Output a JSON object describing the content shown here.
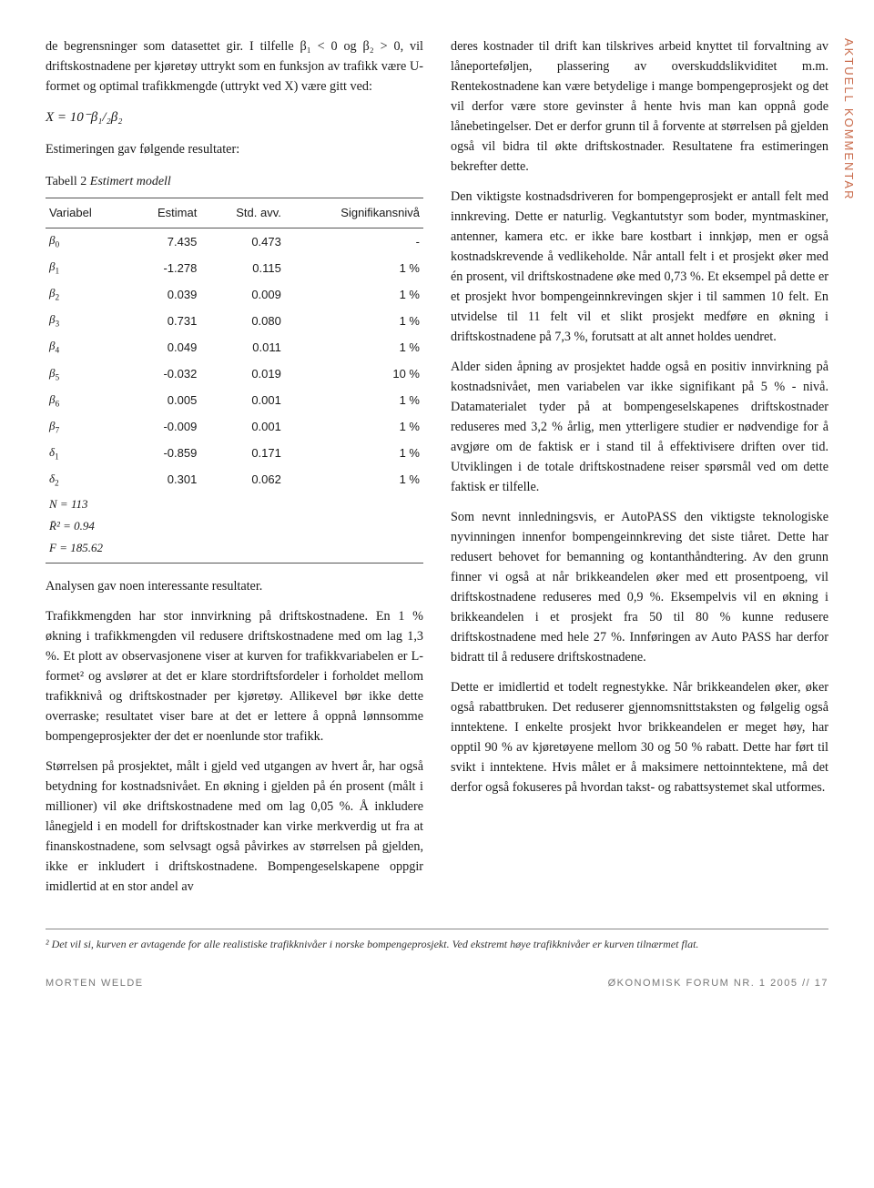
{
  "sideLabel": "AKTUELL KOMMENTAR",
  "left": {
    "p1": "de begrensninger som datasettet gir. I tilfelle β₁ < 0 og β₂ > 0, vil driftskostnadene per kjøretøy uttrykt som en funksjon av trafikk være U-formet og optimal trafikkmengde (uttrykt ved X) være gitt ved:",
    "formula": "X = 10⁻β₁/₂β₂",
    "p2": "Estimeringen gav følgende resultater:",
    "tableTitle": {
      "num": "Tabell 2",
      "name": "Estimert modell"
    },
    "table": {
      "headers": [
        "Variabel",
        "Estimat",
        "Std. avv.",
        "Signifikansnivå"
      ],
      "rows": [
        {
          "v": "β",
          "s": "0",
          "e": "7.435",
          "sd": "0.473",
          "sig": "-"
        },
        {
          "v": "β",
          "s": "1",
          "e": "-1.278",
          "sd": "0.115",
          "sig": "1 %"
        },
        {
          "v": "β",
          "s": "2",
          "e": "0.039",
          "sd": "0.009",
          "sig": "1 %"
        },
        {
          "v": "β",
          "s": "3",
          "e": "0.731",
          "sd": "0.080",
          "sig": "1 %"
        },
        {
          "v": "β",
          "s": "4",
          "e": "0.049",
          "sd": "0.011",
          "sig": "1 %"
        },
        {
          "v": "β",
          "s": "5",
          "e": "-0.032",
          "sd": "0.019",
          "sig": "10 %"
        },
        {
          "v": "β",
          "s": "6",
          "e": "0.005",
          "sd": "0.001",
          "sig": "1 %"
        },
        {
          "v": "β",
          "s": "7",
          "e": "-0.009",
          "sd": "0.001",
          "sig": "1 %"
        },
        {
          "v": "δ",
          "s": "1",
          "e": "-0.859",
          "sd": "0.171",
          "sig": "1 %"
        },
        {
          "v": "δ",
          "s": "2",
          "e": "0.301",
          "sd": "0.062",
          "sig": "1 %"
        }
      ],
      "stats": [
        {
          "label": "N   =   113"
        },
        {
          "label": "R̄²  =   0.94"
        },
        {
          "label": "F   = 185.62"
        }
      ]
    },
    "p3": "Analysen gav noen interessante resultater.",
    "p4": "Trafikkmengden har stor innvirkning på driftskostnadene. En 1 % økning i trafikkmengden vil redusere driftskostnadene med om lag 1,3 %. Et plott av observasjonene viser at kurven for trafikkvariabelen er L-formet² og avslører at det er klare stordriftsfordeler i forholdet mellom trafikknivå og driftskostnader per kjøretøy. Allikevel bør ikke dette overraske; resultatet viser bare at det er lettere å oppnå lønnsomme bompengeprosjekter der det er noenlunde stor trafikk.",
    "p5": "Størrelsen på prosjektet, målt i gjeld ved utgangen av hvert år, har også betydning for kostnadsnivået. En økning i gjelden på én prosent (målt i millioner) vil øke driftskostnadene med om lag 0,05 %. Å inkludere lånegjeld i en modell for driftskostnader kan virke merkverdig ut fra at finanskostnadene, som selvsagt også påvirkes av størrelsen på gjelden, ikke er inkludert i driftskostnadene. Bompengeselskapene oppgir imidlertid at en stor andel av"
  },
  "right": {
    "p1": "deres kostnader til drift kan tilskrives arbeid knyttet til forvaltning av låneporteføljen, plassering av overskuddslikviditet m.m. Rentekostnadene kan være betydelige i mange bompengeprosjekt og det vil derfor være store gevinster å hente hvis man kan oppnå gode lånebetingelser. Det er derfor grunn til å forvente at størrelsen på gjelden også vil bidra til økte driftskostnader. Resultatene fra estimeringen bekrefter dette.",
    "p2": "Den viktigste kostnadsdriveren for bompengeprosjekt er antall felt med innkreving. Dette er naturlig. Vegkantutstyr som boder, myntmaskiner, antenner, kamera etc. er ikke bare kostbart i innkjøp, men er også kostnadskrevende å vedlikeholde. Når antall felt i et prosjekt øker med én prosent, vil driftskostnadene øke med 0,73 %. Et eksempel på dette er et prosjekt hvor bompengeinnkrevingen skjer i til sammen 10 felt. En utvidelse til 11 felt vil et slikt prosjekt medføre en økning i driftskostnadene på 7,3 %, forutsatt at alt annet holdes uendret.",
    "p3": "Alder siden åpning av prosjektet hadde også en positiv innvirkning på kostnadsnivået, men variabelen var ikke signifikant på 5 % - nivå. Datamaterialet tyder på at bompengeselskapenes driftskostnader reduseres med 3,2 % årlig, men ytterligere studier er nødvendige for å avgjøre om de faktisk er i stand til å effektivisere driften over tid. Utviklingen i de totale driftskostnadene reiser spørsmål ved om dette faktisk er tilfelle.",
    "p4": "Som nevnt innledningsvis, er AutoPASS den viktigste teknologiske nyvinningen innenfor bompengeinnkreving det siste tiåret. Dette har redusert behovet for bemanning og kontanthåndtering. Av den grunn finner vi også at når brikkeandelen øker med ett prosentpoeng, vil driftskostnadene reduseres med 0,9 %. Eksempelvis vil en økning i brikkeandelen i et prosjekt fra 50 til 80 % kunne redusere driftskostnadene med hele 27 %. Innføringen av Auto PASS har derfor bidratt til å redusere driftskostnadene.",
    "p5": "Dette er imidlertid et todelt regnestykke. Når brikkeandelen øker, øker også rabattbruken. Det reduserer gjennomsnittstaksten og følgelig også inntektene. I enkelte prosjekt hvor brikkeandelen er meget høy, har opptil 90 % av kjøretøyene mellom 30 og 50 % rabatt. Dette har ført til svikt i inntektene. Hvis målet er å maksimere nettoinntektene, må det derfor også fokuseres på hvordan takst- og rabattsystemet skal utformes."
  },
  "footnote": "²  Det vil si, kurven er avtagende for alle realistiske trafikknivåer i norske bompengeprosjekt. Ved ekstremt høye trafikknivåer er kurven tilnærmet flat.",
  "footer": {
    "left": "MORTEN WELDE",
    "right": "ØKONOMISK FORUM NR. 1 2005 // 17"
  }
}
